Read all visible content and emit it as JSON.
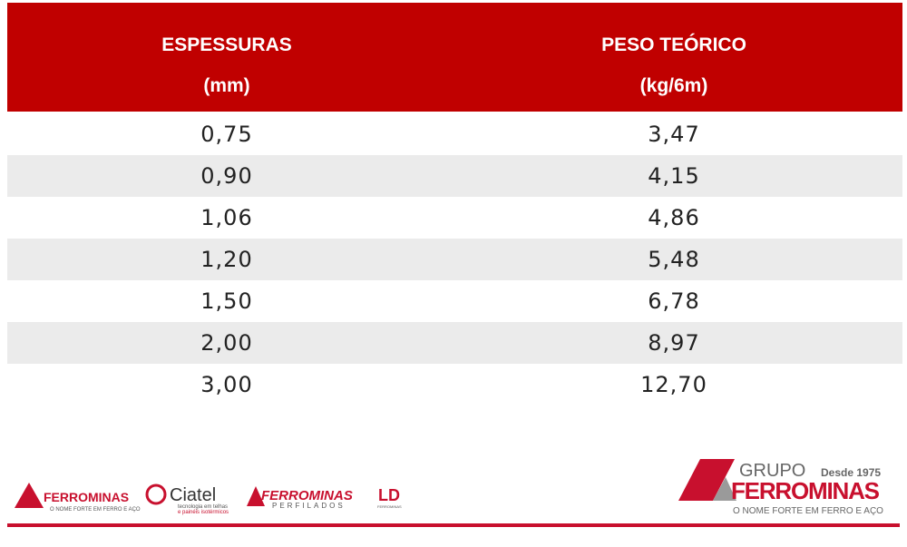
{
  "table": {
    "columns": [
      {
        "title": "ESPESSURAS",
        "unit": "(mm)"
      },
      {
        "title": "PESO TEÓRICO",
        "unit": "(kg/6m)"
      }
    ],
    "rows": [
      [
        "0,75",
        "3,47"
      ],
      [
        "0,90",
        "4,15"
      ],
      [
        "1,06",
        "4,86"
      ],
      [
        "1,20",
        "5,48"
      ],
      [
        "1,50",
        "6,78"
      ],
      [
        "2,00",
        "8,97"
      ],
      [
        "3,00",
        "12,70"
      ]
    ]
  },
  "footer": {
    "logos": [
      {
        "name": "FERROMINAS",
        "tagline": "O NOME FORTE EM FERRO E AÇO"
      },
      {
        "name": "Ciatel",
        "tagline": "tecnologia em telhas",
        "tagline2": "e painéis isotérmicos"
      },
      {
        "name": "FERROMINAS",
        "tagline": "PERFILADOS"
      },
      {
        "name": "LD",
        "tagline": "FERROMINAS"
      }
    ],
    "brand": {
      "prefix": "GRUPO",
      "since": "Desde 1975",
      "name": "FERROMINAS",
      "tagline": "O NOME FORTE EM FERRO E AÇO"
    }
  }
}
